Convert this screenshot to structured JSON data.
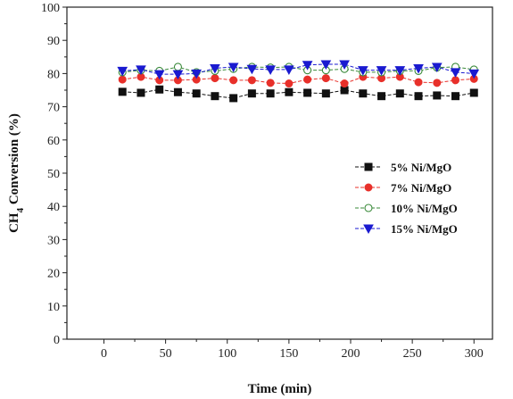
{
  "chart_data": {
    "type": "line",
    "title": "",
    "xlabel": "Time (min)",
    "ylabel_main": "CH",
    "ylabel_sub": "4",
    "ylabel_rest": " Conversion (%)",
    "xlim": [
      -30,
      315
    ],
    "ylim": [
      0,
      100
    ],
    "xticks": [
      0,
      50,
      100,
      150,
      200,
      250,
      300
    ],
    "yticks": [
      0,
      10,
      20,
      30,
      40,
      50,
      60,
      70,
      80,
      90,
      100
    ],
    "legend_position": "right-center",
    "grid": false,
    "x": [
      15,
      30,
      45,
      60,
      75,
      90,
      105,
      120,
      135,
      150,
      165,
      180,
      195,
      210,
      225,
      240,
      255,
      270,
      285,
      300
    ],
    "series": [
      {
        "name": "5% Ni/MgO",
        "color": "#111111",
        "marker": "square-filled",
        "values": [
          74.5,
          74.2,
          75.2,
          74.4,
          74.0,
          73.2,
          72.6,
          74.0,
          74.0,
          74.4,
          74.2,
          74.0,
          75.0,
          74.0,
          73.2,
          74.0,
          73.2,
          73.4,
          73.2,
          74.2
        ]
      },
      {
        "name": "7% Ni/MgO",
        "color": "#e8302a",
        "marker": "circle-filled",
        "values": [
          78.2,
          79.0,
          78.0,
          78.0,
          78.2,
          78.6,
          78.0,
          78.0,
          77.2,
          77.0,
          78.2,
          78.6,
          77.0,
          79.0,
          78.6,
          79.0,
          77.4,
          77.2,
          78.0,
          78.4
        ]
      },
      {
        "name": "10% Ni/MgO",
        "color": "#3a8a3a",
        "marker": "circle-open",
        "values": [
          80.4,
          81.0,
          80.8,
          82.0,
          80.4,
          80.8,
          81.4,
          82.0,
          81.8,
          82.0,
          81.0,
          81.0,
          81.4,
          80.4,
          80.4,
          80.8,
          80.8,
          81.8,
          82.0,
          81.2
        ]
      },
      {
        "name": "15% Ni/MgO",
        "color": "#1a1ad0",
        "marker": "triangle-down-filled",
        "values": [
          80.8,
          81.2,
          79.8,
          79.8,
          80.0,
          81.6,
          82.0,
          81.4,
          81.2,
          81.2,
          82.6,
          82.8,
          82.8,
          81.0,
          81.0,
          81.0,
          81.6,
          82.0,
          80.4,
          80.0
        ]
      }
    ]
  }
}
